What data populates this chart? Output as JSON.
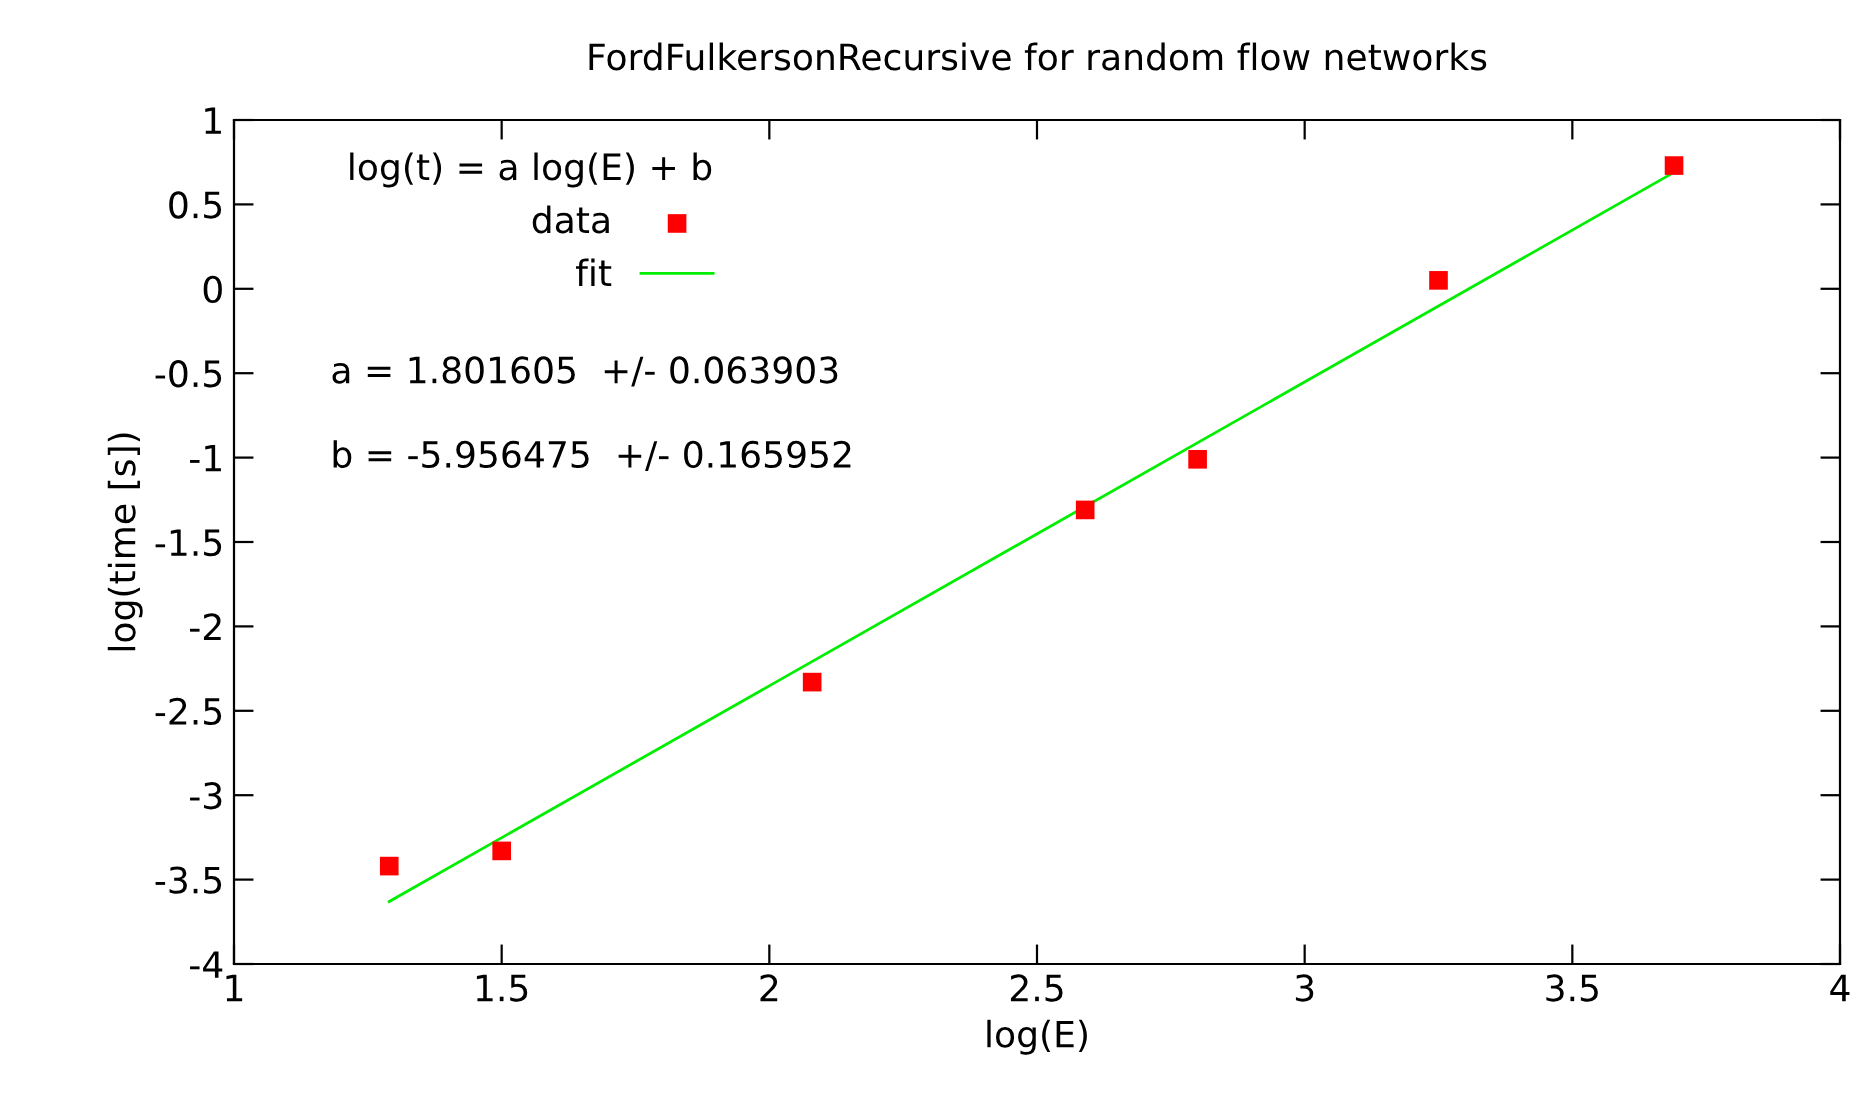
{
  "chart_data": {
    "type": "scatter",
    "title": "FordFulkersonRecursive for random flow networks",
    "xlabel": "log(E)",
    "ylabel": "log(time [s])",
    "legend_title": "log(t) = a log(E) + b",
    "annotations": [
      "a = 1.801605  +/- 0.063903",
      "b = -5.956475  +/- 0.165952"
    ],
    "series": [
      {
        "name": "data",
        "color": "#ff0000",
        "marker": "square",
        "x": [
          1.29,
          1.5,
          2.08,
          2.59,
          2.8,
          3.25,
          3.69
        ],
        "values": [
          -3.42,
          -3.33,
          -2.33,
          -1.31,
          -1.01,
          0.05,
          0.73
        ]
      },
      {
        "name": "fit",
        "type": "line",
        "color": "#00ee00",
        "marker": "none",
        "line_style": "solid",
        "x": [
          1.29,
          3.69
        ],
        "values": [
          -3.63,
          0.69
        ]
      }
    ],
    "xlim": [
      1,
      4
    ],
    "xticks": [
      1,
      1.5,
      2,
      2.5,
      3,
      3.5,
      4
    ],
    "ylim": [
      -4,
      1
    ],
    "yticks": [
      -4,
      -3.5,
      -3,
      -2.5,
      -2,
      -1.5,
      -1,
      -0.5,
      0,
      0.5,
      1
    ],
    "grid": false,
    "legend": "top left"
  }
}
